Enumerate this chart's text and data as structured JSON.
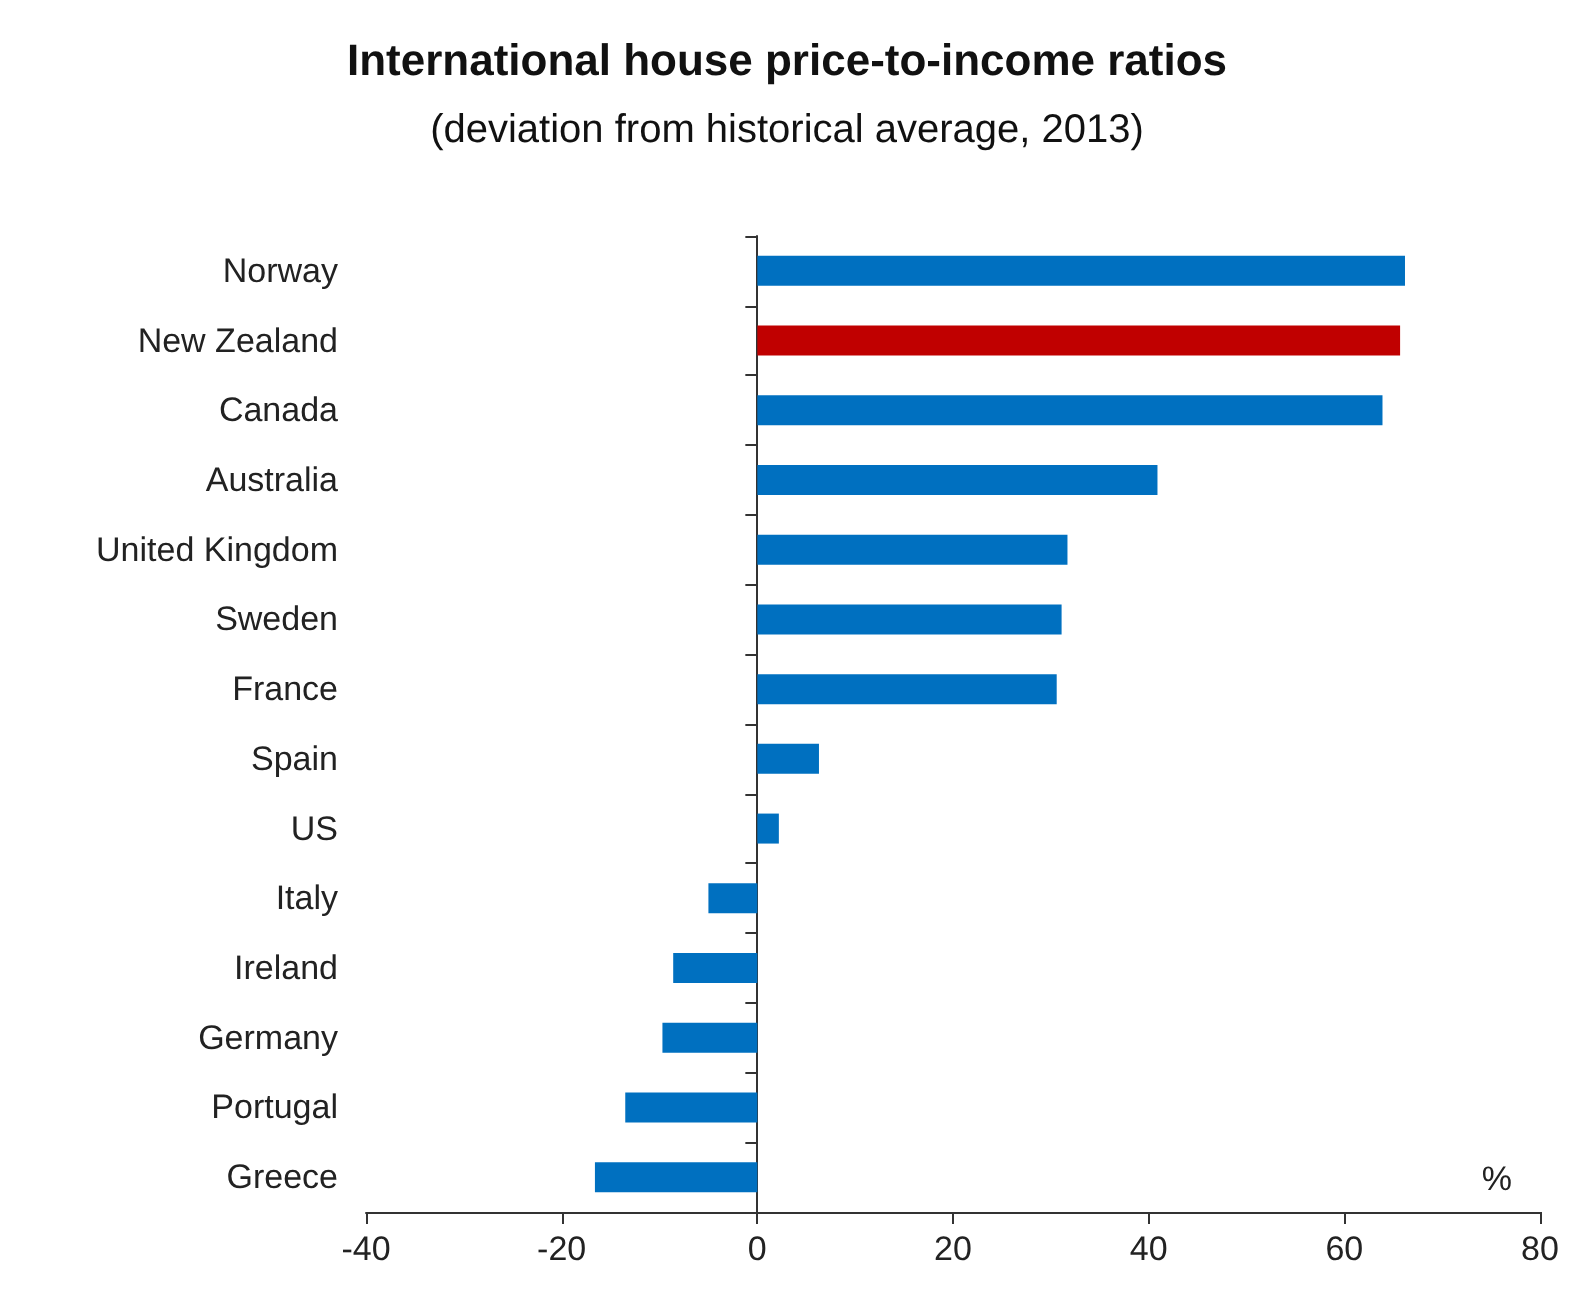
{
  "chart_data": {
    "type": "bar",
    "orientation": "horizontal",
    "title": "International house price-to-income ratios",
    "subtitle": "(deviation from historical average, 2013)",
    "xlabel": "%",
    "categories": [
      "Norway",
      "New Zealand",
      "Canada",
      "Australia",
      "United Kingdom",
      "Sweden",
      "France",
      "Spain",
      "US",
      "Italy",
      "Ireland",
      "Germany",
      "Portugal",
      "Greece"
    ],
    "values": [
      66.2,
      65.7,
      63.9,
      40.9,
      31.7,
      31.1,
      30.6,
      6.3,
      2.2,
      -5.0,
      -8.6,
      -9.7,
      -13.5,
      -16.6
    ],
    "colors": [
      "#0070c0",
      "#c00000",
      "#0070c0",
      "#0070c0",
      "#0070c0",
      "#0070c0",
      "#0070c0",
      "#0070c0",
      "#0070c0",
      "#0070c0",
      "#0070c0",
      "#0070c0",
      "#0070c0",
      "#0070c0"
    ],
    "xlim": [
      -40,
      80
    ],
    "xticks": [
      -40,
      -20,
      0,
      20,
      40,
      60,
      80
    ]
  }
}
